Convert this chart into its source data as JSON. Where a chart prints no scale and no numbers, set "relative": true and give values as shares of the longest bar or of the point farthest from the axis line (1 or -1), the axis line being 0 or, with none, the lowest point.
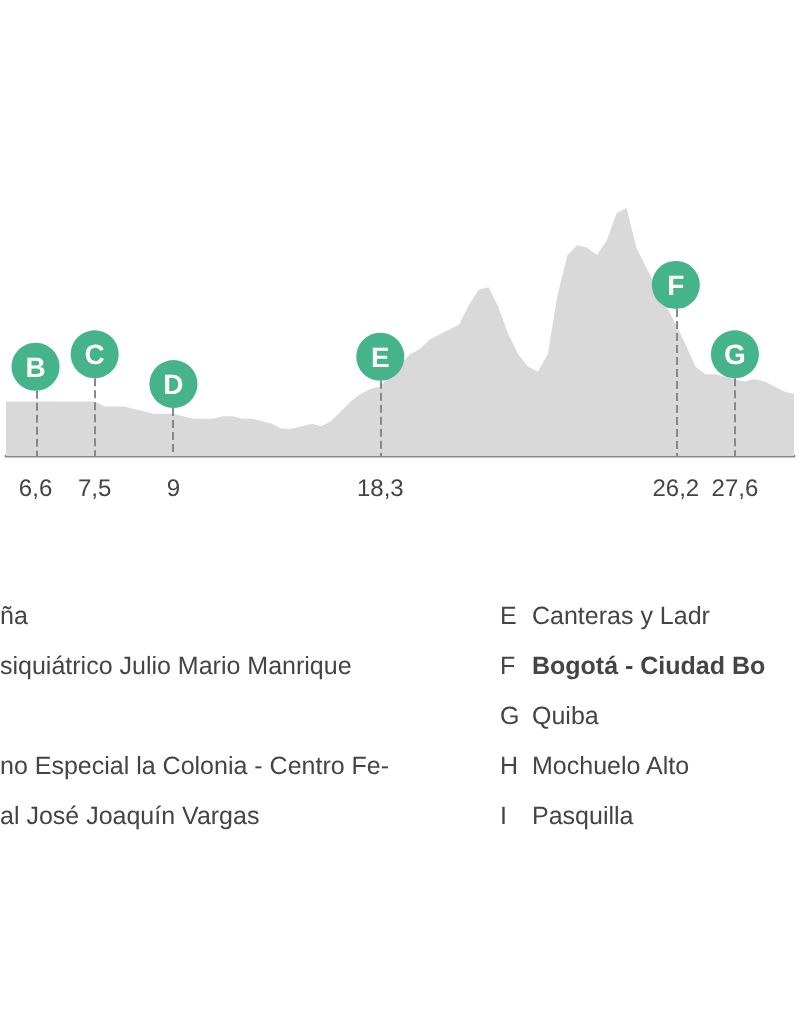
{
  "chart_data": {
    "type": "area",
    "relative": true,
    "color": "#d9d9d9",
    "categories": [
      null,
      null,
      null,
      "6,6",
      null,
      null,
      null,
      null,
      null,
      "7,5",
      null,
      null,
      null,
      null,
      null,
      null,
      null,
      "9",
      null,
      null,
      null,
      null,
      null,
      null,
      null,
      null,
      null,
      null,
      null,
      null,
      null,
      null,
      null,
      null,
      null,
      null,
      null,
      null,
      "18,3",
      null,
      null,
      null,
      null,
      null,
      null,
      null,
      null,
      null,
      null,
      null,
      null,
      null,
      null,
      null,
      null,
      null,
      null,
      null,
      null,
      null,
      null,
      null,
      null,
      null,
      null,
      null,
      null,
      null,
      "26,2",
      null,
      null,
      null,
      null,
      null,
      "27,6",
      null,
      null,
      null,
      null,
      null,
      null
    ],
    "values": [
      0.22,
      0.22,
      0.22,
      0.22,
      0.22,
      0.22,
      0.22,
      0.22,
      0.22,
      0.22,
      0.2,
      0.2,
      0.2,
      0.19,
      0.18,
      0.17,
      0.17,
      0.17,
      0.16,
      0.15,
      0.15,
      0.15,
      0.16,
      0.16,
      0.15,
      0.15,
      0.14,
      0.13,
      0.11,
      0.11,
      0.12,
      0.13,
      0.12,
      0.14,
      0.18,
      0.22,
      0.25,
      0.27,
      0.28,
      null,
      null,
      0.41,
      0.43,
      0.47,
      0.49,
      0.51,
      0.53,
      0.61,
      0.67,
      0.68,
      0.6,
      0.49,
      0.41,
      0.36,
      0.34,
      0.41,
      0.65,
      0.81,
      0.85,
      0.84,
      0.81,
      0.87,
      0.98,
      1,
      0.84,
      0.76,
      null,
      null,
      0.53,
      0.45,
      0.36,
      0.33,
      0.33,
      null,
      null,
      0.3,
      0.31,
      0.3,
      0.28,
      0.26,
      0.25
    ],
    "annotations": [
      {
        "text": "B",
        "x": "6,6",
        "y": 0.36
      },
      {
        "text": "C",
        "x": "7,5",
        "y": 0.41
      },
      {
        "text": "D",
        "x": "9",
        "y": 0.29
      },
      {
        "text": "E",
        "x": "18,3",
        "y": 0.4
      },
      {
        "text": "F",
        "x": "26,2",
        "y": 0.69
      },
      {
        "text": "G",
        "x": "27,6",
        "y": 0.41
      },
      "ña",
      "siquiátrico Julio Mario Manrique",
      "no Especial la Colonia - Centro Fe-",
      "al José Joaquín Vargas",
      "E",
      "Canteras y Ladr",
      "F",
      "Bogotá - Ciudad Bo",
      "G",
      "Quiba",
      "H",
      "Mochuelo Alto",
      "I",
      "Pasquilla"
    ]
  }
}
